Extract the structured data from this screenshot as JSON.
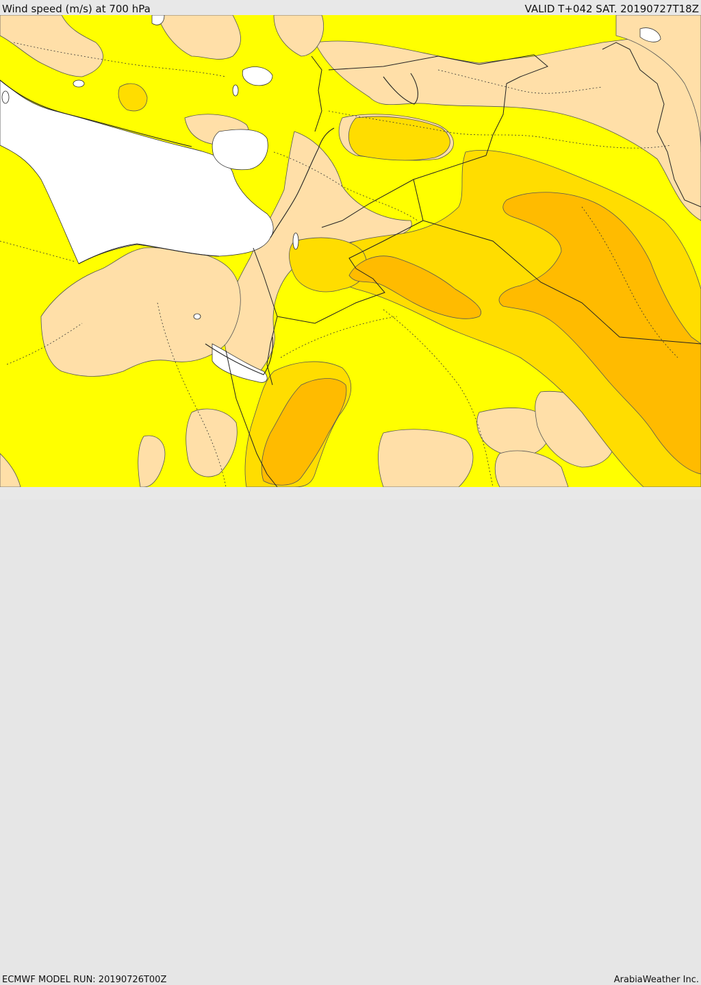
{
  "header": {
    "title": "Wind speed (m/s) at 700 hPa",
    "valid": "VALID T+042 SAT. 20190727T18Z"
  },
  "footer": {
    "model_run": "ECMWF MODEL RUN: 20190726T00Z",
    "credit": "ArabiaWeather Inc."
  },
  "palette": {
    "band_lowest": "#ffffff",
    "band_low": "#ffdfa8",
    "band_mid": "#ffff00",
    "band_high": "#ffdd00",
    "band_higher": "#ffbb00"
  }
}
